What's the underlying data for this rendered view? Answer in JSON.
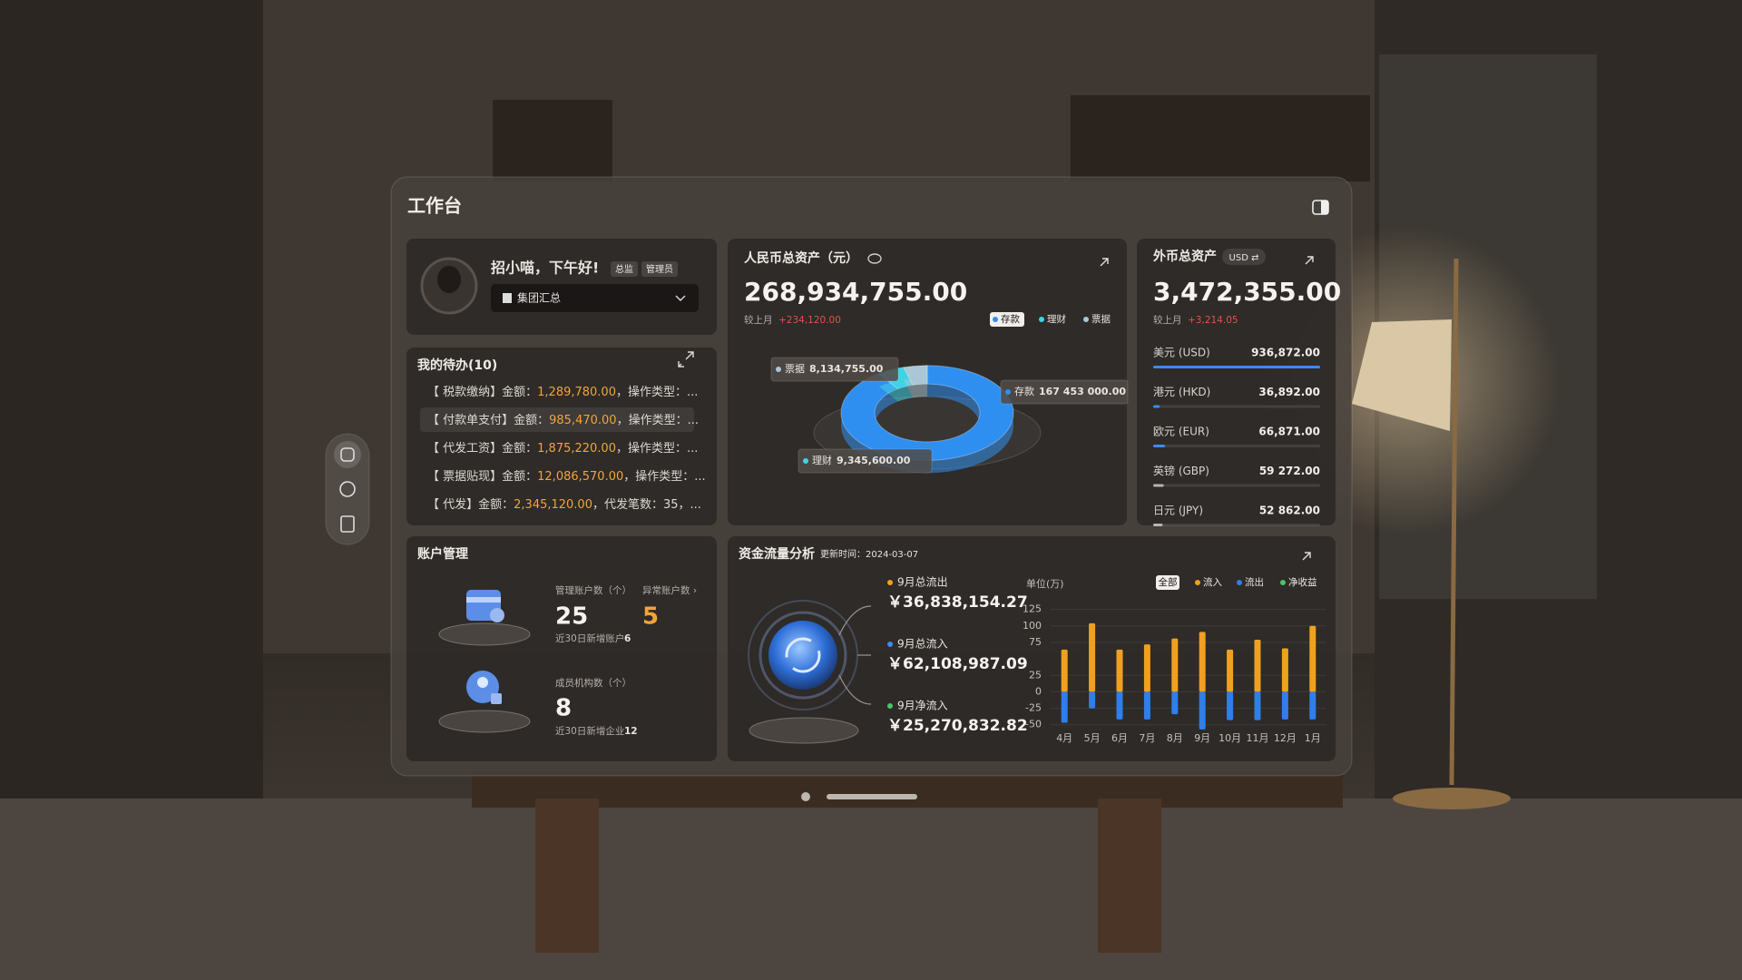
{
  "header": {
    "title": "工作台"
  },
  "user": {
    "greeting": "招小喵，下午好!",
    "tags": [
      "总监",
      "管理员"
    ],
    "org": "集团汇总"
  },
  "todo": {
    "title": "我的待办(10)",
    "items": [
      {
        "prefix": "【 税款缴纳】金额：",
        "amount": "1,289,780.00",
        "suffix": "，操作类型：..."
      },
      {
        "prefix": "【 付款单支付】金额：",
        "amount": "985,470.00",
        "suffix": "，操作类型：..."
      },
      {
        "prefix": "【 代发工资】金额：",
        "amount": "1,875,220.00",
        "suffix": "，操作类型：..."
      },
      {
        "prefix": "【 票据贴现】金额：",
        "amount": "12,086,570.00",
        "suffix": "，操作类型：..."
      },
      {
        "prefix": "【 代发】金额：",
        "amount": "2,345,120.00",
        "suffix": "，代发笔数：35，..."
      }
    ]
  },
  "rmb": {
    "title": "人民币总资产（元）",
    "total": "268,934,755.00",
    "compare_label": "较上月",
    "compare_value": "+234,120.00"
  },
  "fx": {
    "title": "外币总资产",
    "currency_switch": "USD ⇄",
    "total": "3,472,355.00",
    "compare_label": "较上月",
    "compare_value": "+3,214.05",
    "rows": [
      {
        "name": "美元 (USD)",
        "amount": 936872,
        "label": "936,872.00",
        "color": "#3b8cf0"
      },
      {
        "name": "港元 (HKD)",
        "amount": 36892,
        "label": "36,892.00",
        "color": "#3b8cf0"
      },
      {
        "name": "欧元 (EUR)",
        "amount": 66871,
        "label": "66,871.00",
        "color": "#3b8cf0"
      },
      {
        "name": "英镑 (GBP)",
        "amount": 59272,
        "label": "59 272.00",
        "color": "#b9b4ae"
      },
      {
        "name": "日元 (JPY)",
        "amount": 52862,
        "label": "52 862.00",
        "color": "#b9b4ae"
      }
    ]
  },
  "accounts": {
    "title": "账户管理",
    "managed_label": "管理账户数（个）",
    "managed": "25",
    "abnormal_label": "异常账户数 ›",
    "abnormal": "5",
    "recent_label": "近30日新增账户",
    "recent": "6",
    "member_label": "成员机构数（个）",
    "members": "8",
    "member_recent_label": "近30日新增企业",
    "member_recent": "12"
  },
  "cashflow": {
    "title": "资金流量分析",
    "updated": "更新时间：2024-03-07",
    "items": [
      {
        "label": "9月总流出",
        "value": "￥36,838,154.27",
        "color": "#f0a020"
      },
      {
        "label": "9月总流入",
        "value": "￥62,108,987.09",
        "color": "#3b8cf0"
      },
      {
        "label": "9月净流入",
        "value": "￥25,270,832.82",
        "color": "#4cc46a"
      }
    ]
  },
  "chart_data": [
    {
      "type": "pie",
      "categories": [
        "存款",
        "理财",
        "票据"
      ],
      "values": [
        167453000,
        9345600,
        8134755
      ],
      "value_labels": [
        "167 453 000.00",
        "9,345,600.00",
        "8,134,755.00"
      ],
      "colors": [
        "#2f8ff0",
        "#3fd3e6",
        "#a9c7d6"
      ],
      "selected": 0
    },
    {
      "type": "bar",
      "y_label": "单位(万)",
      "filter_all": "全部",
      "categories": [
        "4月",
        "5月",
        "6月",
        "7月",
        "8月",
        "9月",
        "10月",
        "11月",
        "12月",
        "1月"
      ],
      "series": [
        {
          "name": "流入",
          "color": "#f0a020",
          "values": [
            64,
            104,
            64,
            72,
            81,
            91,
            64,
            79,
            66,
            100
          ]
        },
        {
          "name": "流出",
          "color": "#2f7fe8",
          "values": [
            -47,
            -25,
            -42,
            -42,
            -34,
            -57,
            -43,
            -43,
            -42,
            -42
          ]
        }
      ],
      "legend_extra": [
        {
          "name": "净收益",
          "color": "#4cc46a"
        }
      ],
      "ylim": [
        -60,
        130
      ],
      "yticks": [
        125,
        100,
        75,
        25,
        0,
        -25,
        -50
      ],
      "grid": true
    }
  ]
}
